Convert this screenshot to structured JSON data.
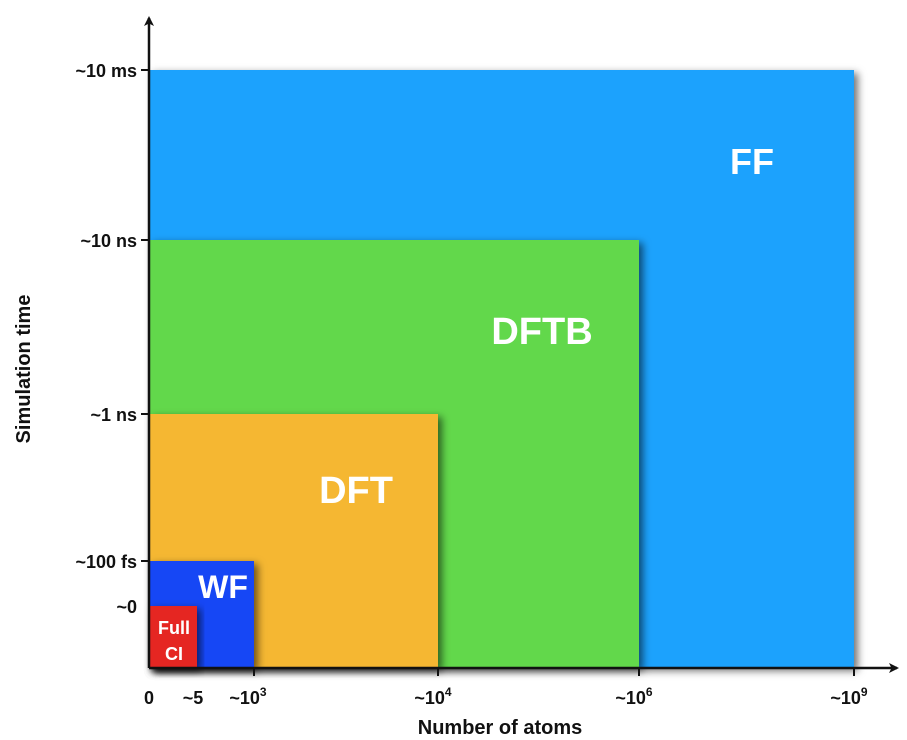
{
  "axes": {
    "x_title": "Number of atoms",
    "y_title": "Simulation time",
    "x_ticks": [
      {
        "text": "0",
        "sup": ""
      },
      {
        "text": "~5",
        "sup": ""
      },
      {
        "text": "~10",
        "sup": "3"
      },
      {
        "text": "~10",
        "sup": "4"
      },
      {
        "text": "~10",
        "sup": "6"
      },
      {
        "text": "~10",
        "sup": "9"
      }
    ],
    "y_ticks": [
      "~10 ms",
      "~10 ns",
      "~1 ns",
      "~100 fs",
      "~0"
    ]
  },
  "regions": [
    {
      "id": "ff",
      "label": "FF",
      "color": "#1fa2fd"
    },
    {
      "id": "dftb",
      "label": "DFTB",
      "color": "#62d84c"
    },
    {
      "id": "dft",
      "label": "DFT",
      "color": "#f5b730"
    },
    {
      "id": "wf",
      "label": "WF",
      "color": "#1547f5"
    },
    {
      "id": "fullci",
      "label_line1": "Full",
      "label_line2": "CI",
      "color": "#e52620"
    }
  ]
}
